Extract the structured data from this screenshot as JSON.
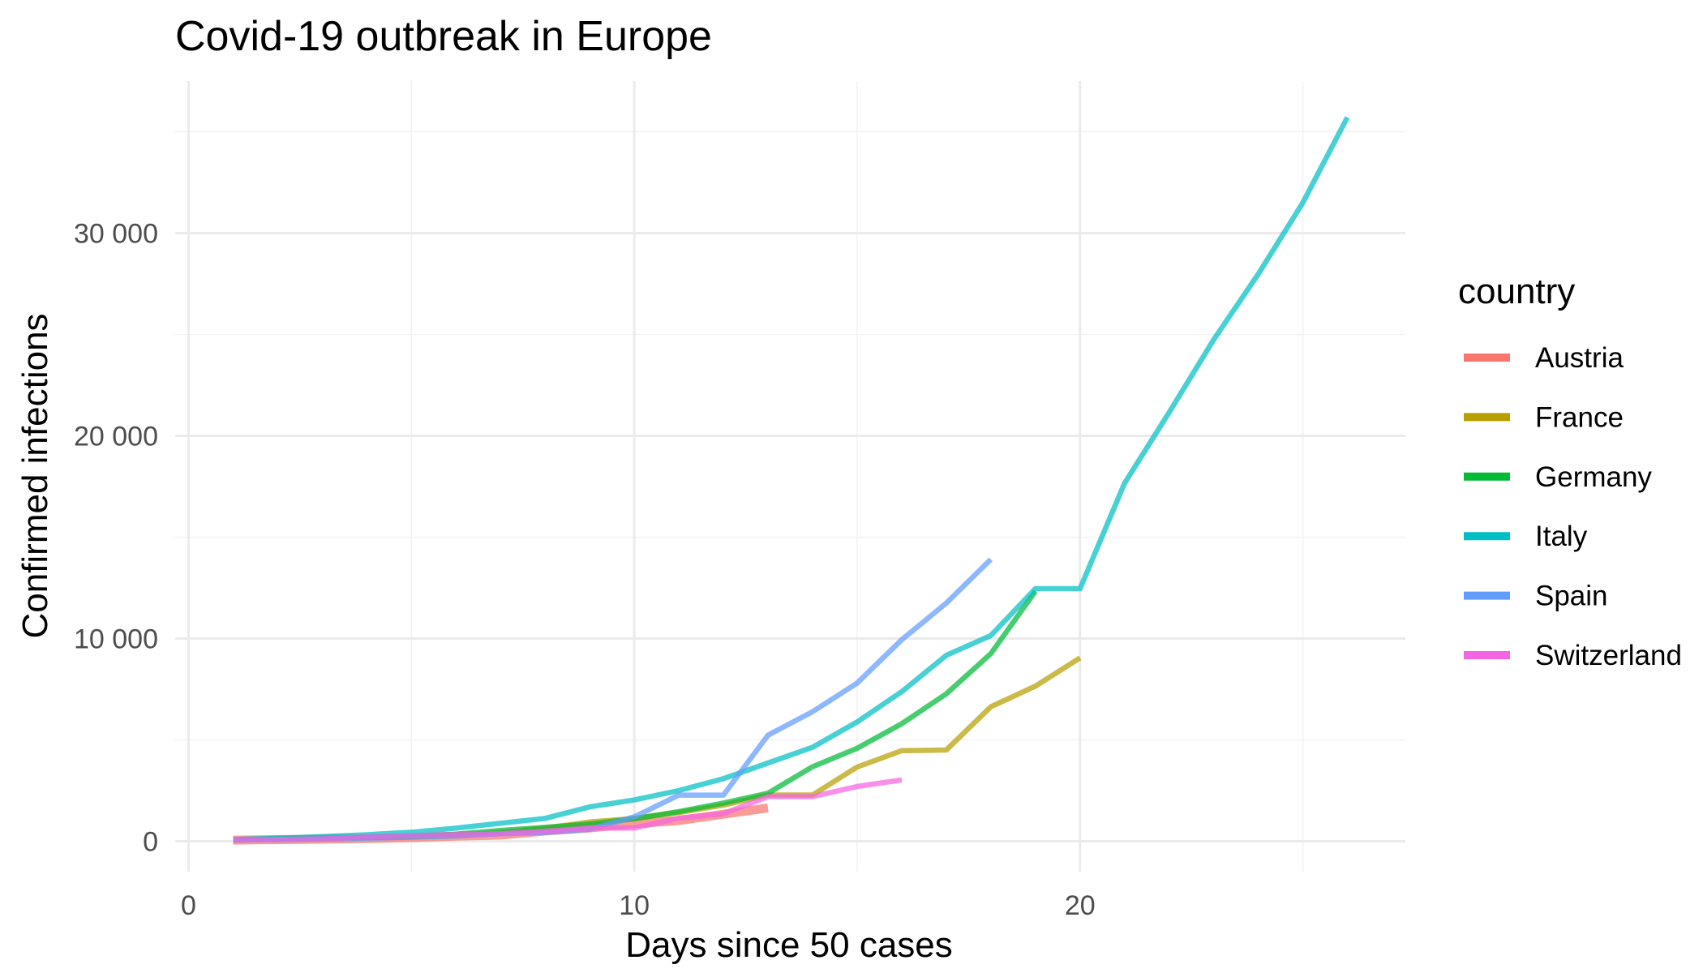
{
  "chart_data": {
    "type": "line",
    "title": "Covid-19 outbreak in Europe",
    "xlabel": "Days since 50 cases",
    "ylabel": "Confirmed infections",
    "xlim": [
      -0.3,
      27.3
    ],
    "ylim": [
      -1500,
      37500
    ],
    "x_ticks": [
      0,
      10,
      20
    ],
    "x_tick_labels": [
      "0",
      "10",
      "20"
    ],
    "y_ticks": [
      0,
      10000,
      20000,
      30000
    ],
    "y_tick_labels": [
      "0",
      "10 000",
      "20 000",
      "30 000"
    ],
    "grid": true,
    "legend": {
      "title": "country",
      "position": "right"
    },
    "series": [
      {
        "name": "Austria",
        "color": "#F8766D",
        "x": [
          1,
          2,
          3,
          4,
          5,
          6,
          7,
          8,
          9,
          10,
          11,
          12,
          13
        ],
        "y": [
          55,
          79,
          104,
          131,
          182,
          246,
          302,
          504,
          655,
          860,
          1018,
          1332,
          1646
        ]
      },
      {
        "name": "France",
        "color": "#B79F00",
        "x": [
          1,
          2,
          3,
          4,
          5,
          6,
          7,
          8,
          9,
          10,
          11,
          12,
          13,
          14,
          15,
          16,
          17,
          18,
          19,
          20
        ],
        "y": [
          57,
          100,
          130,
          191,
          212,
          285,
          423,
          653,
          949,
          1126,
          1412,
          1784,
          2281,
          2281,
          3661,
          4469,
          4499,
          6633,
          7652,
          9043
        ]
      },
      {
        "name": "Germany",
        "color": "#00BA38",
        "x": [
          1,
          2,
          3,
          4,
          5,
          6,
          7,
          8,
          9,
          10,
          11,
          12,
          13,
          14,
          15,
          16,
          17,
          18,
          19
        ],
        "y": [
          66,
          117,
          150,
          188,
          240,
          349,
          534,
          684,
          847,
          1112,
          1460,
          1884,
          2369,
          3675,
          4585,
          5795,
          7272,
          9257,
          12327
        ]
      },
      {
        "name": "Italy",
        "color": "#00BFC4",
        "x": [
          1,
          2,
          3,
          4,
          5,
          6,
          7,
          8,
          9,
          10,
          11,
          12,
          13,
          14,
          15,
          16,
          17,
          18,
          19,
          20,
          21,
          22,
          23,
          24,
          25,
          26
        ],
        "y": [
          79,
          150,
          227,
          320,
          445,
          650,
          888,
          1128,
          1694,
          2036,
          2502,
          3089,
          3858,
          4636,
          5883,
          7375,
          9172,
          10149,
          12462,
          12462,
          17660,
          21157,
          24747,
          27980,
          31506,
          35713
        ]
      },
      {
        "name": "Spain",
        "color": "#619CFF",
        "x": [
          1,
          2,
          3,
          4,
          5,
          6,
          7,
          8,
          9,
          10,
          11,
          12,
          13,
          14,
          15,
          16,
          17,
          18
        ],
        "y": [
          66,
          83,
          114,
          151,
          200,
          261,
          374,
          430,
          589,
          1204,
          2277,
          2277,
          5232,
          6391,
          7798,
          9942,
          11748,
          13910
        ]
      },
      {
        "name": "Switzerland",
        "color": "#F564E3",
        "x": [
          1,
          2,
          3,
          4,
          5,
          6,
          7,
          8,
          9,
          10,
          11,
          12,
          13,
          14,
          15,
          16
        ],
        "y": [
          58,
          87,
          120,
          214,
          268,
          337,
          374,
          491,
          652,
          652,
          1139,
          1359,
          2200,
          2200,
          2700,
          3028
        ]
      }
    ]
  }
}
